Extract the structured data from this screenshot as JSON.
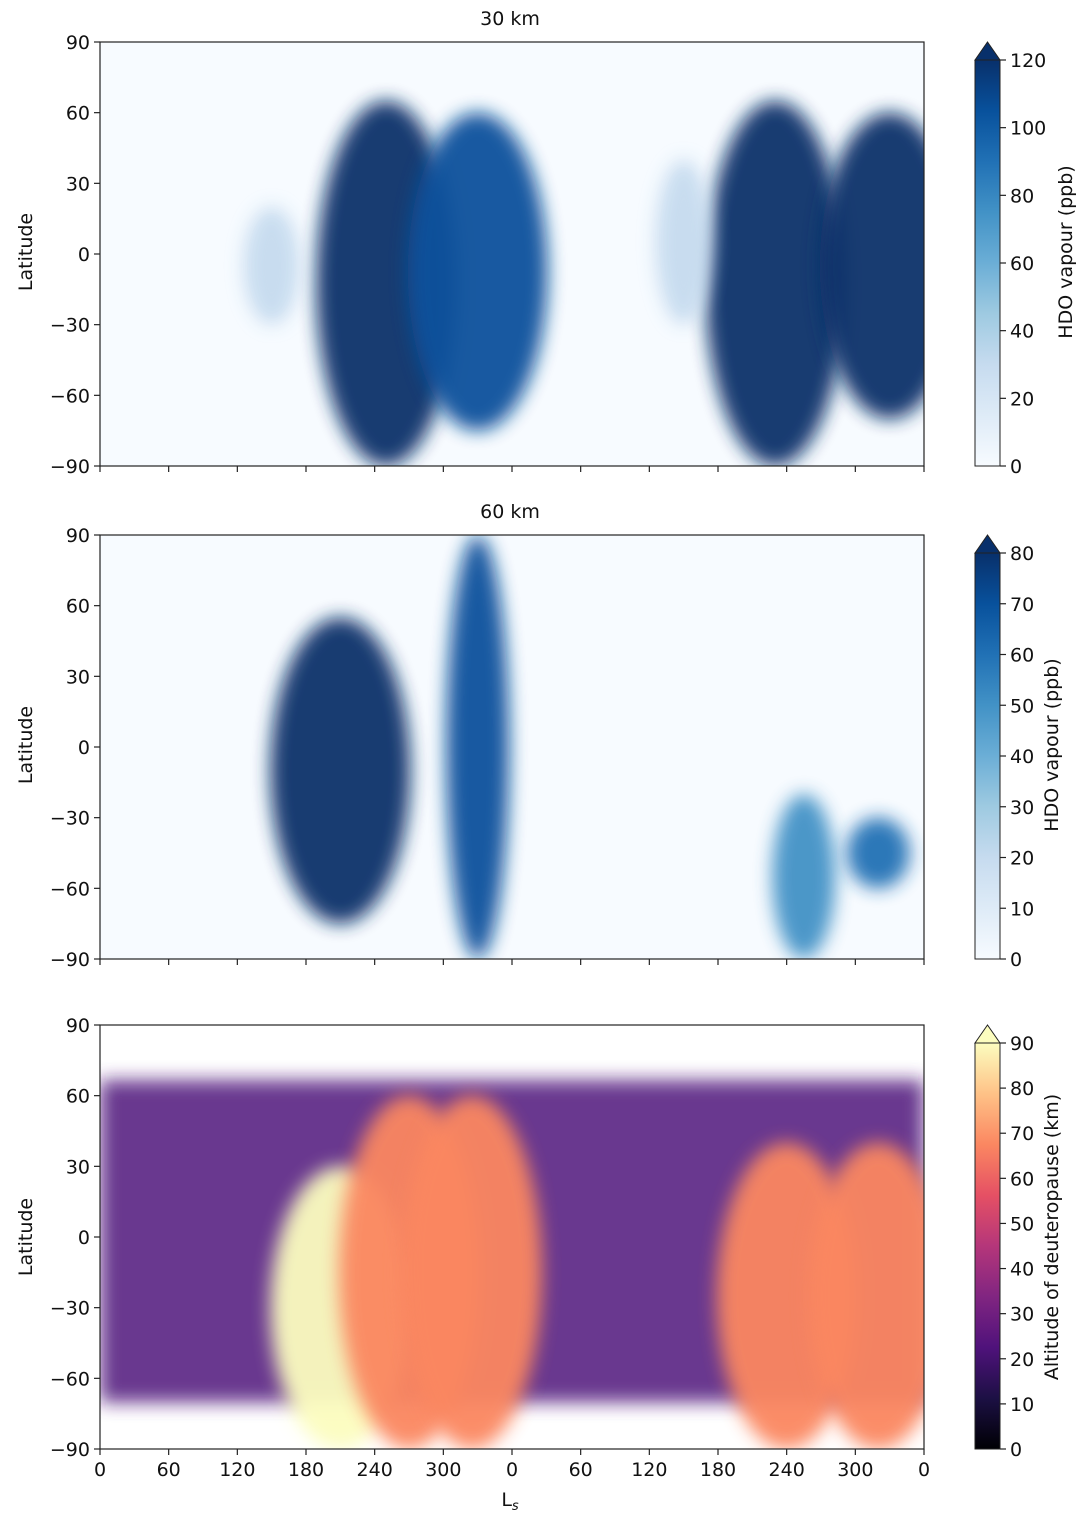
{
  "chart_data": [
    {
      "type": "heatmap",
      "title": "30 km",
      "xlabel": "",
      "ylabel": "Latitude",
      "x_ticks": [
        "",
        "",
        "",
        "",
        "",
        "",
        "",
        "",
        "",
        "",
        "",
        "",
        ""
      ],
      "y_ticks": [
        "90",
        "60",
        "30",
        "0",
        "−30",
        "−60",
        "−90"
      ],
      "ylim": [
        -90,
        90
      ],
      "colorbar": {
        "label": "HDO vapour (ppb)",
        "ticks": [
          "0",
          "20",
          "40",
          "60",
          "80",
          "100",
          "120"
        ],
        "range": [
          0,
          120
        ],
        "extend": "max",
        "colormap": "Blues",
        "colors": [
          "#f7fbff",
          "#deebf7",
          "#c6dbef",
          "#9ecae1",
          "#6baed6",
          "#4292c6",
          "#2171b5",
          "#08519c",
          "#08306b"
        ]
      },
      "features": [
        {
          "ls_center": 250,
          "lat_range": [
            -90,
            65
          ],
          "peak": 120
        },
        {
          "ls_center": 330,
          "lat_range": [
            -75,
            60
          ],
          "peak": 110
        },
        {
          "ls_center": 590,
          "lat_range": [
            -90,
            65
          ],
          "peak": 120
        },
        {
          "ls_center": 690,
          "lat_range": [
            -70,
            60
          ],
          "peak": 120
        },
        {
          "ls_center": 150,
          "lat_range": [
            -30,
            20
          ],
          "peak": 35
        },
        {
          "ls_center": 510,
          "lat_range": [
            -30,
            40
          ],
          "peak": 30
        }
      ]
    },
    {
      "type": "heatmap",
      "title": "60 km",
      "xlabel": "",
      "ylabel": "Latitude",
      "x_ticks": [
        "",
        "",
        "",
        "",
        "",
        "",
        "",
        "",
        "",
        "",
        "",
        "",
        ""
      ],
      "y_ticks": [
        "90",
        "60",
        "30",
        "0",
        "−30",
        "−60",
        "−90"
      ],
      "ylim": [
        -90,
        90
      ],
      "colorbar": {
        "label": "HDO vapour (ppb)",
        "ticks": [
          "0",
          "10",
          "20",
          "30",
          "40",
          "50",
          "60",
          "70",
          "80"
        ],
        "range": [
          0,
          80
        ],
        "extend": "max",
        "colormap": "Blues",
        "colors": [
          "#f7fbff",
          "#deebf7",
          "#c6dbef",
          "#9ecae1",
          "#6baed6",
          "#4292c6",
          "#2171b5",
          "#08519c",
          "#08306b"
        ]
      },
      "features": [
        {
          "ls_center": 210,
          "lat_range": [
            -75,
            55
          ],
          "peak": 80
        },
        {
          "ls_center": 330,
          "lat_range": [
            -90,
            90
          ],
          "peak": 70
        },
        {
          "ls_center": 615,
          "lat_range": [
            -90,
            -20
          ],
          "peak": 50
        },
        {
          "ls_center": 680,
          "lat_range": [
            -60,
            -30
          ],
          "peak": 60
        }
      ]
    },
    {
      "type": "heatmap",
      "title": "",
      "xlabel": "Ls",
      "ylabel": "Latitude",
      "x_ticks": [
        "0",
        "60",
        "120",
        "180",
        "240",
        "300",
        "0",
        "60",
        "120",
        "180",
        "240",
        "300",
        "0"
      ],
      "y_ticks": [
        "90",
        "60",
        "30",
        "0",
        "−30",
        "−60",
        "−90"
      ],
      "ylim": [
        -90,
        90
      ],
      "xlim": [
        0,
        720
      ],
      "colorbar": {
        "label": "Altitude of deuteropause (km)",
        "ticks": [
          "0",
          "10",
          "20",
          "30",
          "40",
          "50",
          "60",
          "70",
          "80",
          "90"
        ],
        "range": [
          0,
          90
        ],
        "extend": "max",
        "colormap": "magma",
        "colors": [
          "#000004",
          "#1c1044",
          "#4f127b",
          "#812581",
          "#b5367a",
          "#e55064",
          "#fb8761",
          "#fec287",
          "#fcfdbf"
        ]
      },
      "features": [
        {
          "ls_center": 210,
          "lat_range": [
            -90,
            30
          ],
          "peak": 90
        },
        {
          "ls_center": 270,
          "lat_range": [
            -90,
            60
          ],
          "peak": 70
        },
        {
          "ls_center": 325,
          "lat_range": [
            -90,
            60
          ],
          "peak": 70
        },
        {
          "ls_center": 600,
          "lat_range": [
            -90,
            40
          ],
          "peak": 70
        },
        {
          "ls_center": 680,
          "lat_range": [
            -90,
            40
          ],
          "peak": 70
        }
      ]
    }
  ]
}
